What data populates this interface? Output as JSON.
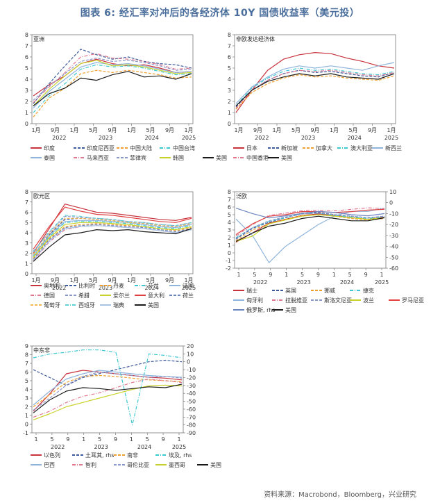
{
  "figure": {
    "title": "图表 6:  经汇率对冲后的各经济体 10Y 国债收益率（美元投）",
    "source": "资料来源：Macrobond，Bloomberg，兴业研究"
  },
  "chart_data": [
    {
      "type": "line",
      "title": "亚洲",
      "ylim": [
        0,
        8
      ],
      "yticks": [
        0,
        1,
        2,
        3,
        4,
        5,
        6,
        7,
        8
      ],
      "tick_labels": [
        "1月",
        "9月",
        "1月",
        "5月",
        "9月",
        "1月",
        "5月",
        "9月",
        "1月"
      ],
      "year_labels": [
        "2022",
        "2023",
        "2024",
        "2025"
      ],
      "series": [
        {
          "name": "印度",
          "color": "#c8323c",
          "dash": "solid",
          "values": [
            2.5,
            3.5,
            4.3,
            5.4,
            5.8,
            5.4,
            5.2,
            5.3,
            5.0,
            4.6,
            4.7
          ]
        },
        {
          "name": "印度尼西亚",
          "color": "#3d5a9c",
          "dash": "dash",
          "values": [
            1.8,
            3.6,
            5.2,
            6.7,
            6.2,
            5.8,
            6.0,
            5.6,
            5.4,
            5.3,
            5.0
          ]
        },
        {
          "name": "中国大陆",
          "color": "#f0a030",
          "dash": "dash",
          "values": [
            0.6,
            2.3,
            3.2,
            4.5,
            4.8,
            4.6,
            4.8,
            4.6,
            4.4,
            4.1,
            4.2
          ]
        },
        {
          "name": "中国台湾",
          "color": "#3cc8d2",
          "dash": "dashdot",
          "values": [
            1.0,
            2.5,
            3.6,
            4.9,
            5.3,
            5.1,
            5.2,
            5.0,
            4.7,
            4.4,
            4.5
          ]
        },
        {
          "name": "泰国",
          "color": "#8fb4dc",
          "dash": "solid",
          "values": [
            1.4,
            2.9,
            4.0,
            5.1,
            5.5,
            5.3,
            5.4,
            5.2,
            4.9,
            4.6,
            4.7
          ]
        },
        {
          "name": "马来西亚",
          "color": "#e07890",
          "dash": "dashdot",
          "values": [
            1.9,
            3.3,
            4.6,
            6.0,
            6.3,
            5.9,
            5.8,
            5.6,
            5.3,
            4.9,
            5.0
          ]
        },
        {
          "name": "菲律宾",
          "color": "#8a96c8",
          "dash": "dash",
          "values": [
            2.1,
            3.4,
            4.5,
            5.6,
            5.9,
            5.6,
            5.7,
            5.5,
            5.2,
            4.8,
            4.9
          ]
        },
        {
          "name": "韩国",
          "color": "#c8d22a",
          "dash": "solid",
          "values": [
            1.6,
            3.1,
            4.3,
            5.4,
            5.7,
            5.2,
            5.3,
            5.1,
            4.8,
            4.5,
            4.6
          ]
        },
        {
          "name": "美国",
          "color": "#1a1a1a",
          "dash": "solid",
          "values": [
            1.6,
            2.7,
            3.2,
            4.1,
            3.9,
            4.4,
            4.7,
            4.2,
            4.3,
            4.0,
            4.5
          ]
        }
      ]
    },
    {
      "type": "line",
      "title": "非欧发达经济体",
      "ylim": [
        0,
        8
      ],
      "yticks": [
        0,
        1,
        2,
        3,
        4,
        5,
        6,
        7,
        8
      ],
      "tick_labels": [
        "1月",
        "9月",
        "1月",
        "5月",
        "9月",
        "1月",
        "5月",
        "9月",
        "1月"
      ],
      "year_labels": [
        "2022",
        "2023",
        "2024",
        "2025"
      ],
      "series": [
        {
          "name": "日本",
          "color": "#c8323c",
          "dash": "solid",
          "values": [
            1.0,
            3.0,
            4.8,
            5.8,
            6.2,
            6.4,
            6.3,
            5.9,
            5.6,
            5.2,
            5.0
          ]
        },
        {
          "name": "新加坡",
          "color": "#3d5a9c",
          "dash": "dash",
          "values": [
            1.5,
            3.0,
            3.9,
            4.5,
            4.8,
            4.6,
            4.7,
            4.5,
            4.3,
            4.2,
            4.6
          ]
        },
        {
          "name": "加拿大",
          "color": "#f0a030",
          "dash": "dash",
          "values": [
            1.3,
            2.8,
            3.6,
            4.1,
            4.4,
            4.2,
            4.3,
            4.1,
            4.0,
            3.9,
            4.3
          ]
        },
        {
          "name": "澳大利亚",
          "color": "#3cc8d2",
          "dash": "dashdot",
          "values": [
            1.6,
            3.2,
            4.1,
            4.7,
            5.0,
            4.8,
            4.9,
            4.7,
            4.5,
            4.4,
            4.7
          ]
        },
        {
          "name": "新西兰",
          "color": "#8fb4dc",
          "dash": "solid",
          "values": [
            1.8,
            3.3,
            4.2,
            4.9,
            5.2,
            5.0,
            5.2,
            5.0,
            4.8,
            5.2,
            5.5
          ]
        },
        {
          "name": "中国香港",
          "color": "#e07890",
          "dash": "dashdot",
          "values": [
            1.4,
            3.0,
            3.9,
            4.5,
            4.8,
            4.7,
            4.8,
            4.6,
            4.4,
            4.3,
            4.6
          ]
        },
        {
          "name": "美国",
          "color": "#1a1a1a",
          "dash": "solid",
          "values": [
            1.6,
            3.0,
            3.8,
            4.2,
            4.5,
            4.3,
            4.5,
            4.2,
            4.1,
            4.0,
            4.5
          ]
        }
      ]
    },
    {
      "type": "line",
      "title": "欧元区",
      "ylim": [
        0,
        8
      ],
      "yticks": [
        0,
        1,
        2,
        3,
        4,
        5,
        6,
        7,
        8
      ],
      "tick_labels": [
        "1月",
        "9月",
        "1月",
        "5月",
        "9月",
        "1月",
        "5月",
        "9月",
        "1月"
      ],
      "year_labels": [
        "2022",
        "2023",
        "2024",
        "2025"
      ],
      "series": [
        {
          "name": "奥地利",
          "color": "#c8323c",
          "dash": "solid",
          "values": [
            2.0,
            4.4,
            6.8,
            6.4,
            6.0,
            5.9,
            5.7,
            5.5,
            5.3,
            5.2,
            5.5
          ]
        },
        {
          "name": "比利时",
          "color": "#3d5a9c",
          "dash": "dash",
          "values": [
            1.8,
            3.8,
            5.3,
            5.4,
            5.3,
            5.2,
            5.0,
            4.9,
            4.7,
            4.6,
            4.9
          ]
        },
        {
          "name": "丹麦",
          "color": "#f0a030",
          "dash": "dash",
          "values": [
            1.5,
            3.4,
            4.6,
            4.8,
            4.9,
            4.8,
            4.7,
            4.6,
            4.4,
            4.2,
            4.5
          ]
        },
        {
          "name": "芬兰",
          "color": "#3cc8d2",
          "dash": "dashdot",
          "values": [
            1.7,
            3.6,
            5.0,
            5.1,
            5.1,
            5.0,
            4.9,
            4.7,
            4.5,
            4.4,
            4.7
          ]
        },
        {
          "name": "法国",
          "color": "#8fb4dc",
          "dash": "solid",
          "values": [
            1.8,
            3.7,
            5.1,
            5.2,
            5.2,
            5.1,
            5.0,
            4.8,
            4.6,
            4.5,
            4.8
          ]
        },
        {
          "name": "德国",
          "color": "#e07890",
          "dash": "dashdot",
          "values": [
            1.2,
            3.1,
            4.3,
            4.6,
            4.7,
            4.6,
            4.5,
            4.4,
            4.2,
            4.0,
            4.3
          ]
        },
        {
          "name": "希腊",
          "color": "#8a96c8",
          "dash": "dash",
          "values": [
            2.2,
            4.0,
            5.6,
            5.5,
            5.4,
            5.3,
            5.1,
            5.0,
            4.8,
            4.7,
            5.0
          ]
        },
        {
          "name": "爱尔兰",
          "color": "#c8d22a",
          "dash": "solid",
          "values": [
            1.6,
            3.5,
            4.8,
            5.0,
            5.0,
            4.9,
            4.8,
            4.6,
            4.4,
            4.3,
            4.6
          ]
        },
        {
          "name": "意大利",
          "color": "#e04040",
          "dash": "solid",
          "values": [
            2.4,
            4.6,
            6.5,
            6.1,
            5.8,
            5.7,
            5.5,
            5.3,
            5.1,
            5.0,
            5.4
          ]
        },
        {
          "name": "荷兰",
          "color": "#6c84c0",
          "dash": "dash",
          "values": [
            1.4,
            3.3,
            4.5,
            4.7,
            4.8,
            4.7,
            4.6,
            4.5,
            4.3,
            4.1,
            4.4
          ]
        },
        {
          "name": "葡萄牙",
          "color": "#f4b850",
          "dash": "dash",
          "values": [
            1.9,
            3.9,
            5.4,
            5.4,
            5.3,
            5.2,
            5.0,
            4.9,
            4.7,
            4.6,
            4.9
          ]
        },
        {
          "name": "西班牙",
          "color": "#5fd0d8",
          "dash": "dashdot",
          "values": [
            2.1,
            4.1,
            5.7,
            5.6,
            5.4,
            5.3,
            5.1,
            5.0,
            4.8,
            4.7,
            5.0
          ]
        },
        {
          "name": "瑞典",
          "color": "#a8c4e4",
          "dash": "solid",
          "values": [
            1.3,
            3.2,
            4.4,
            4.6,
            4.7,
            4.6,
            4.5,
            4.4,
            4.2,
            4.0,
            4.3
          ]
        },
        {
          "name": "美国",
          "color": "#1a1a1a",
          "dash": "solid",
          "values": [
            1.2,
            2.6,
            3.8,
            4.0,
            4.3,
            4.2,
            4.3,
            4.1,
            4.0,
            3.9,
            4.4
          ]
        }
      ]
    },
    {
      "type": "line",
      "title": "泛欧",
      "ylim": [
        -2,
        8
      ],
      "yticks": [
        -2,
        -1,
        0,
        1,
        2,
        3,
        4,
        5,
        6,
        7,
        8
      ],
      "y2lim": [
        -60,
        10
      ],
      "y2ticks": [
        -60,
        -50,
        -40,
        -30,
        -20,
        -10,
        0,
        10
      ],
      "tick_labels": [
        "1",
        "5",
        "9",
        "1",
        "5",
        "9",
        "1",
        "5",
        "9",
        "1"
      ],
      "year_labels": [
        "2022",
        "2023",
        "2024",
        "2025"
      ],
      "series": [
        {
          "name": "瑞士",
          "color": "#c8323c",
          "dash": "solid",
          "values": [
            1.4,
            2.6,
            3.9,
            4.4,
            4.9,
            5.1,
            4.9,
            4.6,
            4.4,
            4.7
          ]
        },
        {
          "name": "英国",
          "color": "#3d5a9c",
          "dash": "dash",
          "values": [
            1.8,
            3.2,
            4.0,
            4.6,
            5.2,
            5.3,
            5.0,
            4.8,
            4.6,
            4.8
          ]
        },
        {
          "name": "挪威",
          "color": "#f0a030",
          "dash": "dash",
          "values": [
            1.6,
            3.0,
            3.8,
            4.4,
            4.9,
            5.0,
            4.8,
            4.5,
            4.3,
            4.5
          ]
        },
        {
          "name": "捷克",
          "color": "#3cc8d2",
          "dash": "dashdot",
          "values": [
            2.0,
            3.3,
            4.1,
            4.6,
            5.1,
            5.2,
            4.9,
            4.7,
            4.5,
            4.7
          ]
        },
        {
          "name": "匈牙利",
          "color": "#8fb4dc",
          "dash": "solid",
          "axis": "right",
          "values": [
            -15,
            -30,
            -55,
            -40,
            -30,
            -20,
            -12,
            -8,
            -8,
            -5
          ]
        },
        {
          "name": "拉脱维亚",
          "color": "#e07890",
          "dash": "dashdot",
          "values": [
            2.2,
            3.7,
            4.9,
            5.2,
            5.5,
            5.6,
            5.5,
            5.7,
            5.9,
            5.8
          ]
        },
        {
          "name": "斯洛文尼亚",
          "color": "#8a96c8",
          "dash": "dash",
          "values": [
            1.9,
            3.3,
            4.2,
            4.7,
            5.1,
            5.2,
            5.0,
            4.8,
            4.6,
            4.8
          ]
        },
        {
          "name": "波兰",
          "color": "#c8d22a",
          "dash": "solid",
          "values": [
            1.5,
            2.2,
            3.8,
            4.3,
            4.8,
            5.0,
            4.8,
            4.6,
            4.4,
            4.6
          ]
        },
        {
          "name": "罗马尼亚",
          "color": "#e04040",
          "dash": "solid",
          "values": [
            2.4,
            3.8,
            4.8,
            5.0,
            5.4,
            5.4,
            5.3,
            5.4,
            5.6,
            5.7
          ]
        },
        {
          "name": "俄罗斯, rhs",
          "color": "#6c84c0",
          "dash": "solid",
          "axis": "right",
          "values": [
            -5,
            -10,
            -14,
            -12,
            -10,
            -8,
            -9,
            -11,
            -12,
            -10
          ]
        },
        {
          "name": "美国",
          "color": "#1a1a1a",
          "dash": "solid",
          "values": [
            1.5,
            2.6,
            3.5,
            3.9,
            4.5,
            4.8,
            4.5,
            4.2,
            4.2,
            4.6
          ]
        }
      ]
    },
    {
      "type": "line",
      "title": "中东非",
      "ylim": [
        -1,
        9
      ],
      "yticks": [
        -1,
        0,
        1,
        2,
        3,
        4,
        5,
        6,
        7,
        8,
        9
      ],
      "y2lim": [
        -90,
        20
      ],
      "y2ticks": [
        -90,
        -80,
        -70,
        -60,
        -50,
        -40,
        -30,
        -20,
        -10,
        0,
        10,
        20
      ],
      "tick_labels": [
        "1",
        "5",
        "9",
        "1",
        "5",
        "9",
        "1",
        "5",
        "9",
        "1"
      ],
      "year_labels": [
        "2022",
        "2023",
        "2024",
        "2025"
      ],
      "series": [
        {
          "name": "以色列",
          "color": "#c8323c",
          "dash": "solid",
          "values": [
            1.5,
            3.5,
            5.8,
            6.2,
            6.0,
            5.8,
            5.6,
            5.4,
            5.3,
            5.1
          ]
        },
        {
          "name": "土耳其, rhs",
          "color": "#3d5a9c",
          "dash": "dash",
          "axis": "right",
          "values": [
            -10,
            -20,
            -30,
            -20,
            -15,
            -10,
            -5,
            0,
            2,
            0
          ]
        },
        {
          "name": "南非",
          "color": "#f0a030",
          "dash": "dash",
          "values": [
            2.0,
            3.4,
            4.8,
            5.5,
            5.6,
            5.5,
            5.3,
            5.1,
            5.0,
            4.9
          ]
        },
        {
          "name": "埃及, rhs",
          "color": "#3cc8d2",
          "dash": "dashdot",
          "axis": "right",
          "values": [
            5,
            10,
            12,
            15,
            15,
            12,
            -80,
            10,
            8,
            5
          ]
        },
        {
          "name": "巴西",
          "color": "#8fb4dc",
          "dash": "solid",
          "values": [
            2.2,
            3.8,
            5.2,
            5.8,
            6.2,
            6.0,
            5.8,
            5.6,
            5.5,
            5.4
          ]
        },
        {
          "name": "智利",
          "color": "#e07890",
          "dash": "dashdot",
          "values": [
            0.8,
            1.5,
            2.5,
            3.2,
            3.6,
            4.2,
            4.8,
            5.2,
            5.0,
            4.8
          ]
        },
        {
          "name": "哥伦比亚",
          "color": "#8a96c8",
          "dash": "dash",
          "values": [
            1.6,
            3.0,
            4.5,
            5.5,
            6.0,
            5.8,
            5.6,
            5.4,
            5.5,
            5.3
          ]
        },
        {
          "name": "墨西哥",
          "color": "#c8d22a",
          "dash": "solid",
          "values": [
            0.5,
            1.2,
            2.0,
            2.5,
            3.0,
            3.5,
            4.0,
            4.4,
            4.5,
            4.4
          ]
        },
        {
          "name": "美国",
          "color": "#1a1a1a",
          "dash": "solid",
          "values": [
            1.3,
            2.8,
            3.8,
            4.2,
            4.1,
            3.9,
            4.1,
            4.3,
            4.2,
            4.6
          ]
        }
      ]
    }
  ]
}
